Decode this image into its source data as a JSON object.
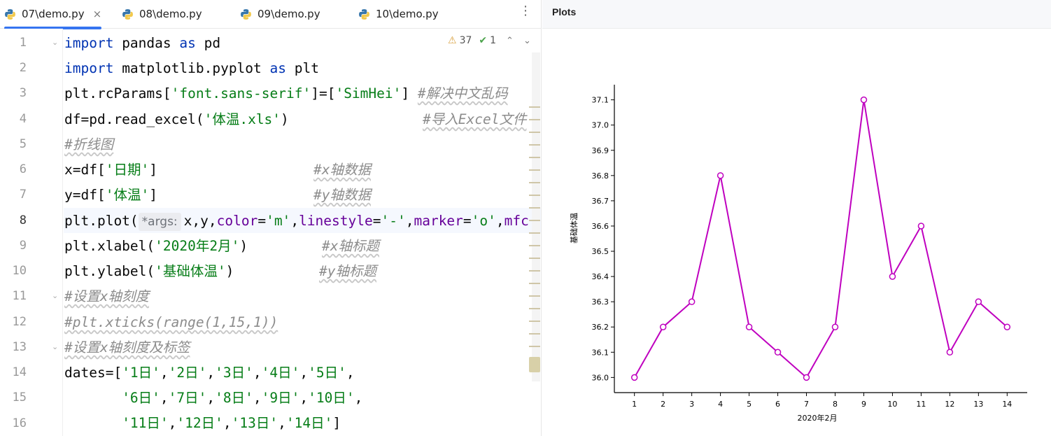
{
  "tabs": [
    {
      "label": "07\\demo.py",
      "active": true
    },
    {
      "label": "08\\demo.py",
      "active": false
    },
    {
      "label": "09\\demo.py",
      "active": false
    },
    {
      "label": "10\\demo.py",
      "active": false
    }
  ],
  "tab_close_glyph": "×",
  "more_tabs_glyph": "⋮",
  "inspections": {
    "warnings": "37",
    "ok": "1"
  },
  "line_numbers": [
    "1",
    "2",
    "3",
    "4",
    "5",
    "6",
    "7",
    "8",
    "9",
    "10",
    "11",
    "12",
    "13",
    "14",
    "15",
    "16"
  ],
  "current_line": "8",
  "code": {
    "l1": {
      "kw1": "import",
      "t1": " pandas ",
      "kw2": "as",
      "t2": " pd"
    },
    "l2": {
      "kw1": "import",
      "t1": " matplotlib.pyplot ",
      "kw2": "as",
      "t2": " plt"
    },
    "l3": {
      "t1": "plt.rcParams[",
      "s1": "'font.sans-serif'",
      "t2": "]=[",
      "s2": "'SimHei'",
      "t3": "] ",
      "c1": "#解决中文乱码"
    },
    "l4": {
      "t1": "df=pd.read_excel(",
      "s1": "'体温.xls'",
      "t2": ")",
      "c1": "#导入Excel文件"
    },
    "l5": {
      "c1": "#折线图"
    },
    "l6": {
      "t1": "x=df[",
      "s1": "'日期'",
      "t2": "]",
      "c1": "#x轴数据"
    },
    "l7": {
      "t1": "y=df[",
      "s1": "'体温'",
      "t2": "]",
      "c1": "#y轴数据"
    },
    "l8": {
      "t1": "plt.plot(",
      "hint": "*args:",
      "t2": "x,y,",
      "k1": "color",
      "t3": "=",
      "s1": "'m'",
      "t4": ",",
      "k2": "linestyle",
      "t5": "=",
      "s2": "'-'",
      "t6": ",",
      "k3": "marker",
      "t7": "=",
      "s3": "'o'",
      "t8": ",",
      "k4": "mfc"
    },
    "l9": {
      "t1": "plt.xlabel(",
      "s1": "'2020年2月'",
      "t2": ")",
      "c1": "#x轴标题"
    },
    "l10": {
      "t1": "plt.ylabel(",
      "s1": "'基础体温'",
      "t2": ")",
      "c1": "#y轴标题"
    },
    "l11": {
      "c1": "#设置x轴刻度"
    },
    "l12": {
      "c1": "#plt.xticks(range(1,15,1))"
    },
    "l13": {
      "c1": "#设置x轴刻度及标签"
    },
    "l14": {
      "t1": "dates=[",
      "s1": "'1日'",
      "t2": ",",
      "s2": "'2日'",
      "t3": ",",
      "s3": "'3日'",
      "t4": ",",
      "s4": "'4日'",
      "t5": ",",
      "s5": "'5日'",
      "t6": ","
    },
    "l15": {
      "t0": "       ",
      "s1": "'6日'",
      "t1": ",",
      "s2": "'7日'",
      "t2": ",",
      "s3": "'8日'",
      "t3": ",",
      "s4": "'9日'",
      "t4": ",",
      "s5": "'10日'",
      "t5": ","
    },
    "l16": {
      "t0": "       ",
      "s1": "'11日'",
      "t1": ",",
      "s2": "'12日'",
      "t2": ",",
      "s3": "'13日'",
      "t3": ",",
      "s4": "'14日'",
      "t4": "]"
    }
  },
  "plots": {
    "title": "Plots"
  },
  "chart_data": {
    "type": "line",
    "x": [
      1,
      2,
      3,
      4,
      5,
      6,
      7,
      8,
      9,
      10,
      11,
      12,
      13,
      14
    ],
    "series": [
      {
        "values": [
          36.0,
          36.2,
          36.3,
          36.8,
          36.2,
          36.1,
          36.0,
          36.2,
          37.1,
          36.4,
          36.6,
          36.1,
          36.3,
          36.2
        ],
        "color": "#bf00bf",
        "marker": "o",
        "linestyle": "-"
      }
    ],
    "xticks": [
      "1",
      "2",
      "3",
      "4",
      "5",
      "6",
      "7",
      "8",
      "9",
      "10",
      "11",
      "12",
      "13",
      "14"
    ],
    "yticks": [
      "36.0",
      "36.1",
      "36.2",
      "36.3",
      "36.4",
      "36.5",
      "36.6",
      "36.7",
      "36.8",
      "36.9",
      "37.0",
      "37.1"
    ],
    "xlabel": "2020年2月",
    "ylabel": "基础体温",
    "xlim": [
      0.3,
      14.7
    ],
    "ylim": [
      35.94,
      37.16
    ],
    "grid": false
  }
}
